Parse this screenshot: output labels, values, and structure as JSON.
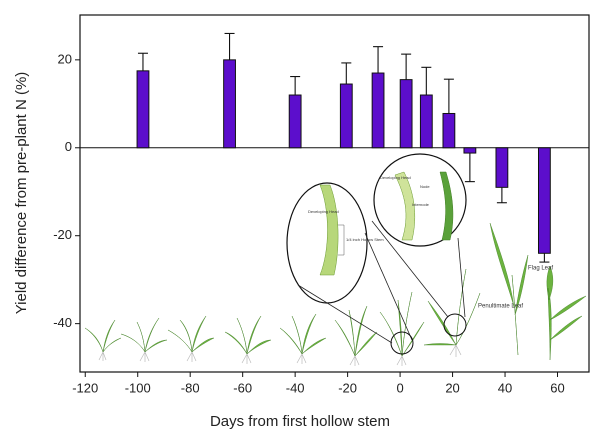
{
  "chart_data": {
    "type": "bar",
    "y_label": "Yield difference from pre-plant N (%)",
    "x_label": "Days from first hollow stem",
    "x": [
      -98,
      -65,
      -40,
      -20.5,
      -8.4,
      2.3,
      10,
      18.6,
      26.6,
      38.8,
      55
    ],
    "values": [
      17.5,
      20,
      12,
      14.5,
      17,
      15.5,
      12,
      7.8,
      -1.2,
      -9,
      -24
    ],
    "errors": [
      4,
      6,
      4.2,
      4.8,
      6,
      5.8,
      6.3,
      7.8,
      6.5,
      3.5,
      2
    ],
    "color": "#5c0ecc",
    "bar_width": 4.5,
    "xlim": [
      -122,
      72
    ],
    "ylim": [
      -51,
      30.2
    ],
    "xticks": [
      -120,
      -100,
      -80,
      -60,
      -40,
      -20,
      0,
      20,
      40,
      60
    ],
    "yticks": [
      -40,
      -20,
      0,
      20
    ],
    "annotations": [
      "Developing Head",
      "1/4 inch Hollow Stem",
      "Developing Head",
      "Node",
      "Internode",
      "Flag Leaf",
      "Penultimate Leaf"
    ]
  }
}
